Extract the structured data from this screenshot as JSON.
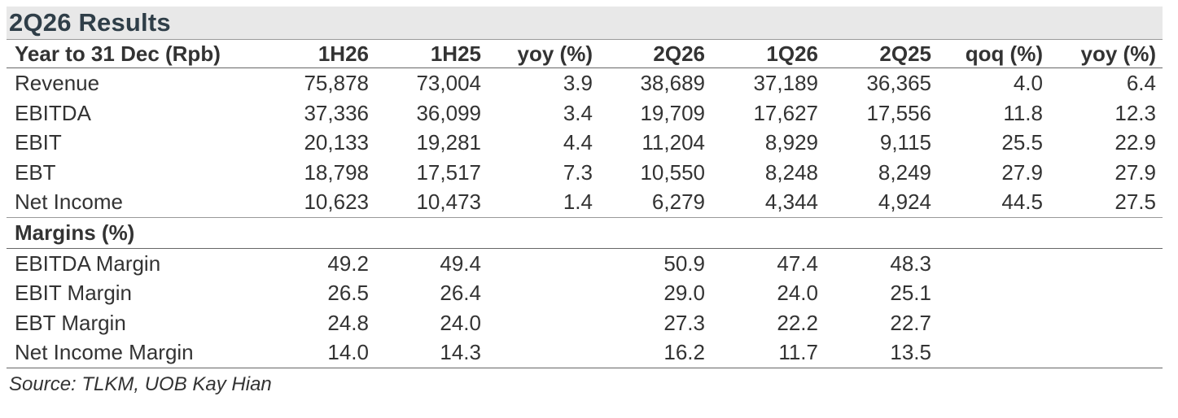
{
  "title": "2Q26 Results",
  "table": {
    "headers": [
      "Year to 31 Dec (Rpb)",
      "1H26",
      "1H25",
      "yoy (%)",
      "2Q26",
      "1Q26",
      "2Q25",
      "qoq (%)",
      "yoy (%)"
    ],
    "rows": [
      [
        "Revenue",
        "75,878",
        "73,004",
        "3.9",
        "38,689",
        "37,189",
        "36,365",
        "4.0",
        "6.4"
      ],
      [
        "EBITDA",
        "37,336",
        "36,099",
        "3.4",
        "19,709",
        "17,627",
        "17,556",
        "11.8",
        "12.3"
      ],
      [
        "EBIT",
        "20,133",
        "19,281",
        "4.4",
        "11,204",
        "8,929",
        "9,115",
        "25.5",
        "22.9"
      ],
      [
        "EBT",
        "18,798",
        "17,517",
        "7.3",
        "10,550",
        "8,248",
        "8,249",
        "27.9",
        "27.9"
      ],
      [
        "Net Income",
        "10,623",
        "10,473",
        "1.4",
        "6,279",
        "4,344",
        "4,924",
        "44.5",
        "27.5"
      ]
    ],
    "section_label": "Margins (%)",
    "margin_rows": [
      [
        "EBITDA Margin",
        "49.2",
        "49.4",
        "",
        "50.9",
        "47.4",
        "48.3",
        "",
        ""
      ],
      [
        "EBIT Margin",
        "26.5",
        "26.4",
        "",
        "29.0",
        "24.0",
        "25.1",
        "",
        ""
      ],
      [
        "EBT Margin",
        "24.8",
        "24.0",
        "",
        "27.3",
        "22.2",
        "22.7",
        "",
        ""
      ],
      [
        "Net Income Margin",
        "14.0",
        "14.3",
        "",
        "16.2",
        "11.7",
        "13.5",
        "",
        ""
      ]
    ]
  },
  "source": "Source: TLKM, UOB Kay Hian"
}
